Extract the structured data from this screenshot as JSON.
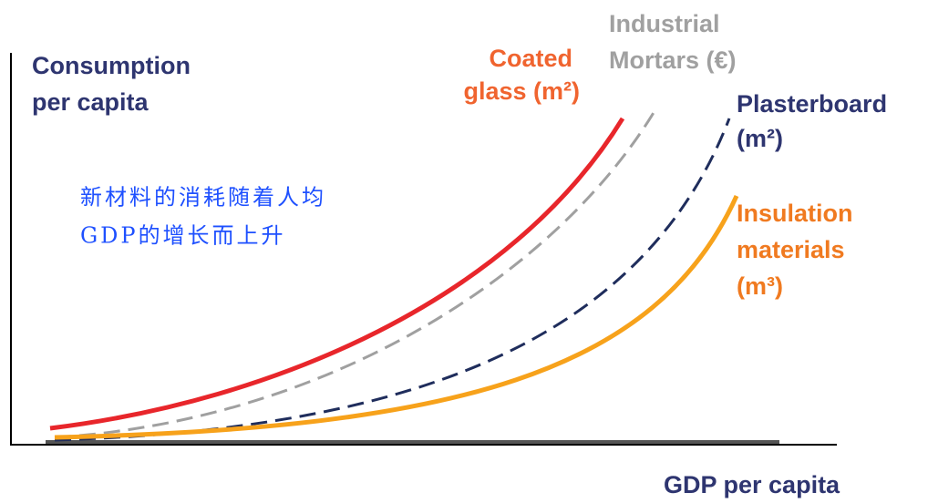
{
  "y_axis_label": [
    "Consumption",
    "per capita"
  ],
  "x_axis_label": "GDP per capita",
  "annotation": [
    "新材料的消耗随着人均",
    "GDP的增长而上升"
  ],
  "curves": [
    {
      "label": [
        "Coated",
        "glass (m²)"
      ]
    },
    {
      "label": [
        "Industrial",
        "Mortars (€)"
      ]
    },
    {
      "label": [
        "Plasterboard",
        "(m²)"
      ]
    },
    {
      "label": [
        "Insulation",
        "materials",
        "(m³)"
      ]
    }
  ]
}
